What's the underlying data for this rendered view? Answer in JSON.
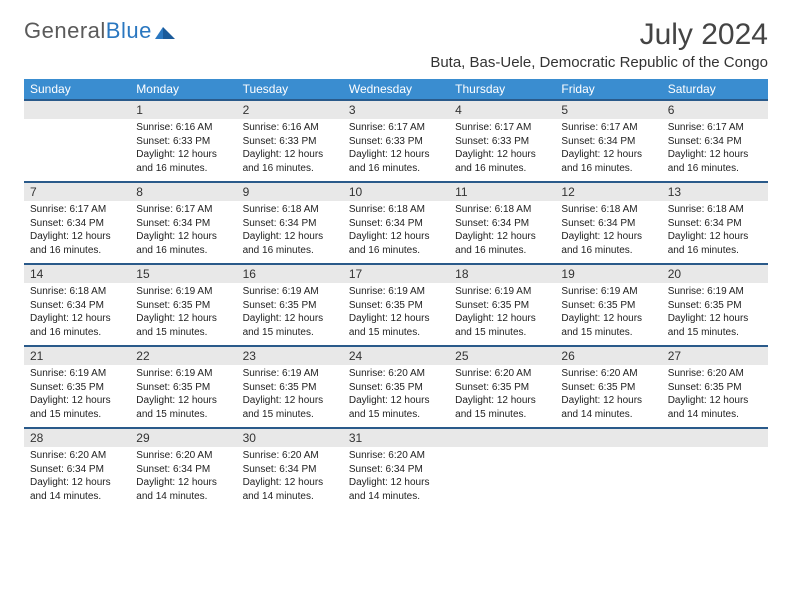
{
  "logo": {
    "text1": "General",
    "text2": "Blue"
  },
  "title": "July 2024",
  "location": "Buta, Bas-Uele, Democratic Republic of the Congo",
  "day_names": [
    "Sunday",
    "Monday",
    "Tuesday",
    "Wednesday",
    "Thursday",
    "Friday",
    "Saturday"
  ],
  "colors": {
    "header_bg": "#3a8dd0",
    "header_text": "#ffffff",
    "border": "#2a5a8a",
    "daynum_bg": "#e8e8e8",
    "text": "#222222"
  },
  "weeks": [
    {
      "nums": [
        "",
        "1",
        "2",
        "3",
        "4",
        "5",
        "6"
      ],
      "cells": [
        {
          "sunrise": "",
          "sunset": "",
          "daylight": ""
        },
        {
          "sunrise": "Sunrise: 6:16 AM",
          "sunset": "Sunset: 6:33 PM",
          "daylight": "Daylight: 12 hours and 16 minutes."
        },
        {
          "sunrise": "Sunrise: 6:16 AM",
          "sunset": "Sunset: 6:33 PM",
          "daylight": "Daylight: 12 hours and 16 minutes."
        },
        {
          "sunrise": "Sunrise: 6:17 AM",
          "sunset": "Sunset: 6:33 PM",
          "daylight": "Daylight: 12 hours and 16 minutes."
        },
        {
          "sunrise": "Sunrise: 6:17 AM",
          "sunset": "Sunset: 6:33 PM",
          "daylight": "Daylight: 12 hours and 16 minutes."
        },
        {
          "sunrise": "Sunrise: 6:17 AM",
          "sunset": "Sunset: 6:34 PM",
          "daylight": "Daylight: 12 hours and 16 minutes."
        },
        {
          "sunrise": "Sunrise: 6:17 AM",
          "sunset": "Sunset: 6:34 PM",
          "daylight": "Daylight: 12 hours and 16 minutes."
        }
      ]
    },
    {
      "nums": [
        "7",
        "8",
        "9",
        "10",
        "11",
        "12",
        "13"
      ],
      "cells": [
        {
          "sunrise": "Sunrise: 6:17 AM",
          "sunset": "Sunset: 6:34 PM",
          "daylight": "Daylight: 12 hours and 16 minutes."
        },
        {
          "sunrise": "Sunrise: 6:17 AM",
          "sunset": "Sunset: 6:34 PM",
          "daylight": "Daylight: 12 hours and 16 minutes."
        },
        {
          "sunrise": "Sunrise: 6:18 AM",
          "sunset": "Sunset: 6:34 PM",
          "daylight": "Daylight: 12 hours and 16 minutes."
        },
        {
          "sunrise": "Sunrise: 6:18 AM",
          "sunset": "Sunset: 6:34 PM",
          "daylight": "Daylight: 12 hours and 16 minutes."
        },
        {
          "sunrise": "Sunrise: 6:18 AM",
          "sunset": "Sunset: 6:34 PM",
          "daylight": "Daylight: 12 hours and 16 minutes."
        },
        {
          "sunrise": "Sunrise: 6:18 AM",
          "sunset": "Sunset: 6:34 PM",
          "daylight": "Daylight: 12 hours and 16 minutes."
        },
        {
          "sunrise": "Sunrise: 6:18 AM",
          "sunset": "Sunset: 6:34 PM",
          "daylight": "Daylight: 12 hours and 16 minutes."
        }
      ]
    },
    {
      "nums": [
        "14",
        "15",
        "16",
        "17",
        "18",
        "19",
        "20"
      ],
      "cells": [
        {
          "sunrise": "Sunrise: 6:18 AM",
          "sunset": "Sunset: 6:34 PM",
          "daylight": "Daylight: 12 hours and 16 minutes."
        },
        {
          "sunrise": "Sunrise: 6:19 AM",
          "sunset": "Sunset: 6:35 PM",
          "daylight": "Daylight: 12 hours and 15 minutes."
        },
        {
          "sunrise": "Sunrise: 6:19 AM",
          "sunset": "Sunset: 6:35 PM",
          "daylight": "Daylight: 12 hours and 15 minutes."
        },
        {
          "sunrise": "Sunrise: 6:19 AM",
          "sunset": "Sunset: 6:35 PM",
          "daylight": "Daylight: 12 hours and 15 minutes."
        },
        {
          "sunrise": "Sunrise: 6:19 AM",
          "sunset": "Sunset: 6:35 PM",
          "daylight": "Daylight: 12 hours and 15 minutes."
        },
        {
          "sunrise": "Sunrise: 6:19 AM",
          "sunset": "Sunset: 6:35 PM",
          "daylight": "Daylight: 12 hours and 15 minutes."
        },
        {
          "sunrise": "Sunrise: 6:19 AM",
          "sunset": "Sunset: 6:35 PM",
          "daylight": "Daylight: 12 hours and 15 minutes."
        }
      ]
    },
    {
      "nums": [
        "21",
        "22",
        "23",
        "24",
        "25",
        "26",
        "27"
      ],
      "cells": [
        {
          "sunrise": "Sunrise: 6:19 AM",
          "sunset": "Sunset: 6:35 PM",
          "daylight": "Daylight: 12 hours and 15 minutes."
        },
        {
          "sunrise": "Sunrise: 6:19 AM",
          "sunset": "Sunset: 6:35 PM",
          "daylight": "Daylight: 12 hours and 15 minutes."
        },
        {
          "sunrise": "Sunrise: 6:19 AM",
          "sunset": "Sunset: 6:35 PM",
          "daylight": "Daylight: 12 hours and 15 minutes."
        },
        {
          "sunrise": "Sunrise: 6:20 AM",
          "sunset": "Sunset: 6:35 PM",
          "daylight": "Daylight: 12 hours and 15 minutes."
        },
        {
          "sunrise": "Sunrise: 6:20 AM",
          "sunset": "Sunset: 6:35 PM",
          "daylight": "Daylight: 12 hours and 15 minutes."
        },
        {
          "sunrise": "Sunrise: 6:20 AM",
          "sunset": "Sunset: 6:35 PM",
          "daylight": "Daylight: 12 hours and 14 minutes."
        },
        {
          "sunrise": "Sunrise: 6:20 AM",
          "sunset": "Sunset: 6:35 PM",
          "daylight": "Daylight: 12 hours and 14 minutes."
        }
      ]
    },
    {
      "nums": [
        "28",
        "29",
        "30",
        "31",
        "",
        "",
        ""
      ],
      "cells": [
        {
          "sunrise": "Sunrise: 6:20 AM",
          "sunset": "Sunset: 6:34 PM",
          "daylight": "Daylight: 12 hours and 14 minutes."
        },
        {
          "sunrise": "Sunrise: 6:20 AM",
          "sunset": "Sunset: 6:34 PM",
          "daylight": "Daylight: 12 hours and 14 minutes."
        },
        {
          "sunrise": "Sunrise: 6:20 AM",
          "sunset": "Sunset: 6:34 PM",
          "daylight": "Daylight: 12 hours and 14 minutes."
        },
        {
          "sunrise": "Sunrise: 6:20 AM",
          "sunset": "Sunset: 6:34 PM",
          "daylight": "Daylight: 12 hours and 14 minutes."
        },
        {
          "sunrise": "",
          "sunset": "",
          "daylight": ""
        },
        {
          "sunrise": "",
          "sunset": "",
          "daylight": ""
        },
        {
          "sunrise": "",
          "sunset": "",
          "daylight": ""
        }
      ]
    }
  ]
}
